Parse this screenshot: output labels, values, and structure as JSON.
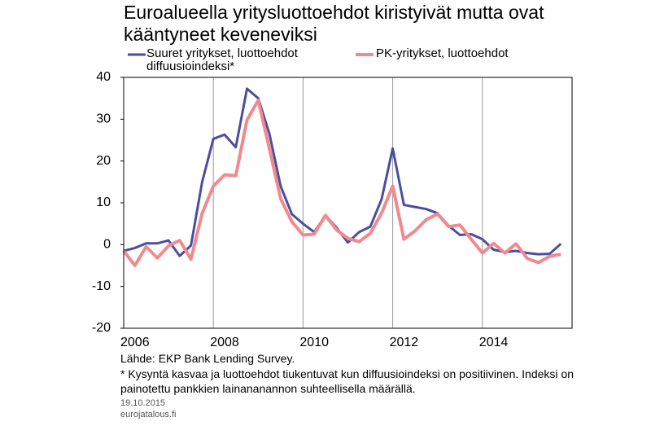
{
  "chart_data": {
    "type": "line",
    "title": "Euroalueella yritysluottoehdot kiristyivät mutta ovat kääntyneet keveneviksi",
    "x": [
      2006,
      2006.25,
      2006.5,
      2006.75,
      2007,
      2007.25,
      2007.5,
      2007.75,
      2008,
      2008.25,
      2008.5,
      2008.75,
      2009,
      2009.25,
      2009.5,
      2009.75,
      2010,
      2010.25,
      2010.5,
      2010.75,
      2011,
      2011.25,
      2011.5,
      2011.75,
      2012,
      2012.25,
      2012.5,
      2012.75,
      2013,
      2013.25,
      2013.5,
      2013.75,
      2014,
      2014.25,
      2014.5,
      2014.75,
      2015,
      2015.25,
      2015.5,
      2015.75
    ],
    "series": [
      {
        "name": "Suuret yritykset, luottoehdot diffuusioindeksi*",
        "color": "#4b4e9f",
        "values": [
          -1.5,
          -0.8,
          0.3,
          0.3,
          1,
          -2.7,
          -0.2,
          15,
          25.3,
          26.3,
          23.3,
          37.3,
          35,
          26.5,
          14,
          7.3,
          5,
          3,
          7,
          4,
          0.5,
          3,
          4.3,
          10.8,
          23,
          9.5,
          9,
          8.5,
          7.5,
          4.5,
          2.3,
          2.5,
          1.3,
          -1.2,
          -1.8,
          -1.5,
          -2,
          -2.3,
          -2.2,
          0.2
        ]
      },
      {
        "name": "PK-yritykset, luottoehdot",
        "color": "#f08a8e",
        "values": [
          -1.5,
          -5,
          -0.5,
          -3.2,
          -0.3,
          1,
          -3.5,
          7.5,
          14,
          16.7,
          16.5,
          29.8,
          34.5,
          23,
          11,
          5.5,
          2.3,
          2.5,
          7,
          3.5,
          1.5,
          0.7,
          2.7,
          7.5,
          14,
          1.3,
          3.3,
          6,
          7.3,
          4.3,
          4.7,
          1.3,
          -2,
          0.3,
          -2,
          0.2,
          -3.3,
          -4.3,
          -2.8,
          -2.3
        ]
      }
    ],
    "xlim": [
      2006,
      2016
    ],
    "xticks": [
      2006,
      2008,
      2010,
      2012,
      2014
    ],
    "ylim": [
      -20,
      40
    ],
    "yticks": [
      -20,
      -10,
      0,
      10,
      20,
      30,
      40
    ],
    "source": "Lähde: EKP Bank Lending Survey.",
    "footnote": "* Kysyntä kasvaa ja luottoehdot tiukentuvat kun diffuusioindeksi on positiivinen. Indeksi on painotettu pankkien lainananannon suhteellisella määrällä.",
    "date": "19.10.2015",
    "site": "eurojatalous.fi"
  }
}
